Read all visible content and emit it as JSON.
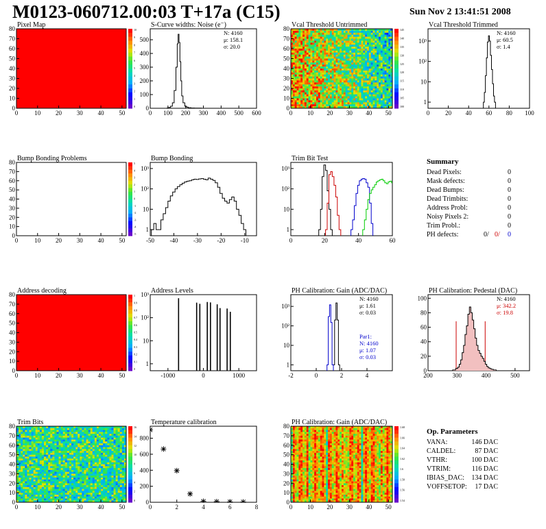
{
  "header": {
    "title": "M0123-060712.00:03 T+17a (C15)",
    "date": "Sun Nov  2 13:41:51 2008"
  },
  "colors": {
    "uniform_map": "#ff0000",
    "hist_black": "#000000",
    "hist_red": "#cc0000",
    "hist_blue": "#0000cc",
    "hist_green": "#00cc00"
  },
  "chart_data": [
    {
      "id": "pixel_map",
      "type": "heatmap",
      "title": "Pixel Map",
      "xlim": [
        0,
        52
      ],
      "ylim": [
        0,
        80
      ],
      "xticks": [
        "0",
        "10",
        "20",
        "30",
        "40",
        "50"
      ],
      "yticks": [
        "0",
        "10",
        "20",
        "30",
        "40",
        "50",
        "60",
        "70",
        "80"
      ],
      "fill": "uniform",
      "value": 10,
      "zticks": [
        "10",
        "9",
        "8",
        "7",
        "6",
        "5",
        "4",
        "3",
        "2",
        "1",
        "0"
      ]
    },
    {
      "id": "scurve_widths",
      "type": "histogram",
      "title": "S-Curve widths: Noise (e⁻)",
      "xlim": [
        0,
        600
      ],
      "ylim": [
        0,
        580
      ],
      "log_y": false,
      "xticks": [
        "0",
        "100",
        "200",
        "300",
        "400",
        "500",
        "600"
      ],
      "yticks": [
        "0",
        "100",
        "200",
        "300",
        "400",
        "500"
      ],
      "stats": [
        "N: 4160",
        "μ: 158.1",
        "σ: 20.0"
      ],
      "series": [
        {
          "color": "black",
          "x": [
            90,
            100,
            110,
            120,
            130,
            140,
            150,
            155,
            160,
            165,
            170,
            175,
            180,
            190,
            200,
            210,
            220,
            240,
            260,
            280,
            300
          ],
          "y": [
            0,
            2,
            6,
            15,
            40,
            130,
            300,
            470,
            540,
            480,
            340,
            200,
            90,
            40,
            15,
            8,
            4,
            2,
            1,
            1,
            0
          ]
        }
      ]
    },
    {
      "id": "vcal_untrimmed",
      "type": "heatmap",
      "title": "Vcal Threshold Untrimmed",
      "xlim": [
        0,
        52
      ],
      "ylim": [
        0,
        80
      ],
      "xticks": [
        "0",
        "10",
        "20",
        "30",
        "40",
        "50"
      ],
      "yticks": [
        "0",
        "10",
        "20",
        "30",
        "40",
        "50",
        "60",
        "70",
        "80"
      ],
      "fill": "gradient_untrimmed",
      "zticks": [
        "145",
        "140",
        "135",
        "130",
        "125",
        "120",
        "115",
        "110",
        "105",
        "100"
      ]
    },
    {
      "id": "vcal_trimmed",
      "type": "histogram",
      "title": "Vcal Threshold Trimmed",
      "xlim": [
        0,
        100
      ],
      "ylim": [
        0.5,
        4000
      ],
      "log_y": true,
      "xticks": [
        "0",
        "20",
        "40",
        "60",
        "80",
        "100"
      ],
      "yticks": [
        "1",
        "10",
        "10²",
        "10³"
      ],
      "stats": [
        "N: 4160",
        "μ: 60.5",
        "σ:  1.4"
      ],
      "series": [
        {
          "color": "black",
          "x": [
            55,
            56,
            57,
            58,
            59,
            60,
            61,
            62,
            63,
            64,
            65,
            66
          ],
          "y": [
            1,
            3,
            20,
            150,
            900,
            1800,
            1000,
            200,
            40,
            8,
            2,
            1
          ]
        }
      ]
    },
    {
      "id": "bump_problems",
      "type": "heatmap",
      "title": "Bump Bonding Problems",
      "xlim": [
        0,
        52
      ],
      "ylim": [
        0,
        80
      ],
      "xticks": [
        "0",
        "10",
        "20",
        "30",
        "40",
        "50"
      ],
      "yticks": [
        "0",
        "10",
        "20",
        "30",
        "40",
        "50",
        "60",
        "70",
        "80"
      ],
      "fill": "empty",
      "zticks": [
        "5",
        "4",
        "3",
        "2",
        "1",
        "0",
        "-1",
        "-2",
        "-3",
        "-4",
        "-5"
      ]
    },
    {
      "id": "bump_bonding",
      "type": "histogram",
      "title": "Bump Bonding",
      "xlim": [
        -50,
        -5
      ],
      "ylim": [
        0.5,
        2000
      ],
      "log_y": true,
      "xticks": [
        "-50",
        "-40",
        "-30",
        "-20",
        "-10"
      ],
      "yticks": [
        "1",
        "10",
        "10²",
        "10³"
      ],
      "series": [
        {
          "color": "black",
          "x": [
            -49,
            -48,
            -47,
            -46,
            -45,
            -44,
            -43,
            -42,
            -41,
            -40,
            -39,
            -38,
            -37,
            -36,
            -35,
            -34,
            -33,
            -32,
            -31,
            -30,
            -29,
            -28,
            -27,
            -26,
            -25,
            -24,
            -23,
            -22,
            -21,
            -20,
            -19,
            -18,
            -17,
            -16,
            -15,
            -14,
            -13,
            -12,
            -11,
            -10
          ],
          "y": [
            1,
            2,
            1,
            1,
            3,
            6,
            12,
            25,
            45,
            70,
            100,
            130,
            160,
            190,
            220,
            240,
            250,
            280,
            300,
            290,
            310,
            320,
            300,
            280,
            340,
            300,
            260,
            200,
            120,
            60,
            35,
            25,
            20,
            30,
            40,
            25,
            10,
            5,
            2,
            1
          ]
        }
      ]
    },
    {
      "id": "trim_bit_test",
      "type": "histogram",
      "title": "Trim Bit Test",
      "xlim": [
        0,
        60
      ],
      "ylim": [
        0.5,
        2000
      ],
      "log_y": true,
      "xticks": [
        "0",
        "20",
        "40",
        "60"
      ],
      "yticks": [
        "1",
        "10",
        "10²",
        "10³"
      ],
      "series": [
        {
          "color": "black",
          "x": [
            17,
            18,
            19,
            20,
            21,
            22,
            23,
            24
          ],
          "y": [
            1,
            10,
            400,
            1500,
            800,
            80,
            10,
            1
          ]
        },
        {
          "color": "red",
          "x": [
            21,
            22,
            23,
            24,
            25,
            26,
            27,
            28,
            29
          ],
          "y": [
            1,
            20,
            500,
            700,
            400,
            150,
            40,
            5,
            1
          ]
        },
        {
          "color": "blue",
          "x": [
            36,
            37,
            38,
            39,
            40,
            41,
            42,
            43,
            44,
            45,
            46,
            47,
            48
          ],
          "y": [
            1,
            3,
            15,
            60,
            150,
            250,
            300,
            320,
            300,
            200,
            120,
            20,
            2
          ]
        },
        {
          "color": "green",
          "x": [
            43,
            44,
            45,
            46,
            47,
            48,
            49,
            50,
            51,
            52,
            53,
            54,
            55,
            56,
            57,
            58,
            59,
            60
          ],
          "y": [
            1,
            3,
            10,
            30,
            60,
            90,
            120,
            160,
            220,
            250,
            280,
            300,
            250,
            200,
            180,
            220,
            240,
            200
          ]
        }
      ]
    },
    {
      "id": "address_decoding",
      "type": "heatmap",
      "title": "Address decoding",
      "xlim": [
        0,
        52
      ],
      "ylim": [
        0,
        80
      ],
      "xticks": [
        "0",
        "10",
        "20",
        "30",
        "40",
        "50"
      ],
      "yticks": [
        "0",
        "10",
        "20",
        "30",
        "40",
        "50",
        "60",
        "70",
        "80"
      ],
      "fill": "uniform",
      "value": 1,
      "zticks": [
        "1",
        "0.9",
        "0.8",
        "0.7",
        "0.6",
        "0.5",
        "0.4",
        "0.3",
        "0.2",
        "0.1",
        "0"
      ]
    },
    {
      "id": "address_levels",
      "type": "histogram",
      "title": "Address Levels",
      "xlim": [
        -1500,
        1500
      ],
      "ylim": [
        0.5,
        1000
      ],
      "log_y": true,
      "xticks": [
        "-1000",
        "0",
        "1000"
      ],
      "yticks": [
        "1",
        "10",
        "10²",
        "10³"
      ],
      "series": [
        {
          "color": "black",
          "style": "spikes",
          "x": [
            -700,
            -190,
            -100,
            110,
            200,
            390,
            470,
            670,
            760
          ],
          "y": [
            700,
            450,
            400,
            480,
            460,
            380,
            260,
            250,
            180
          ]
        }
      ]
    },
    {
      "id": "ph_gain",
      "type": "histogram",
      "title": "PH Calibration: Gain (ADC/DAC)",
      "xlim": [
        -2,
        6
      ],
      "ylim": [
        0.5,
        4000
      ],
      "log_y": true,
      "xticks": [
        "-2",
        "0",
        "2",
        "4"
      ],
      "yticks": [
        "1",
        "10",
        "10²",
        "10³"
      ],
      "stats": [
        "N: 4160",
        "μ: 1.61",
        "σ: 0.03"
      ],
      "stats2": [
        "Par1:",
        "N: 4160",
        "μ: 1.07",
        "σ: 0.03"
      ],
      "series": [
        {
          "color": "black",
          "x": [
            1.4,
            1.5,
            1.6,
            1.7,
            1.8
          ],
          "y": [
            1,
            200,
            1500,
            200,
            1
          ]
        },
        {
          "color": "blue",
          "x": [
            0.9,
            1.0,
            1.1,
            1.2,
            1.3
          ],
          "y": [
            1,
            300,
            1200,
            150,
            1
          ]
        }
      ]
    },
    {
      "id": "ph_pedestal",
      "type": "histogram",
      "title": "PH Calibration: Pedestal (DAC)",
      "xlim": [
        200,
        550
      ],
      "ylim": [
        0,
        105
      ],
      "log_y": false,
      "xticks": [
        "200",
        "300",
        "400",
        "500"
      ],
      "yticks": [
        "0",
        "20",
        "40",
        "60",
        "80",
        "100"
      ],
      "stats": [
        "N: 4160",
        "μ: 342.2",
        "σ: 19.8"
      ],
      "cut_lines": [
        297,
        397
      ],
      "series": [
        {
          "color": "black",
          "x": [
            280,
            290,
            300,
            305,
            310,
            315,
            320,
            325,
            330,
            335,
            340,
            345,
            350,
            355,
            360,
            365,
            370,
            375,
            380,
            385,
            390,
            395,
            400,
            405,
            410,
            415,
            420,
            430,
            440
          ],
          "y": [
            0,
            1,
            3,
            5,
            9,
            15,
            25,
            35,
            50,
            62,
            78,
            88,
            80,
            70,
            58,
            45,
            35,
            28,
            24,
            20,
            17,
            13,
            9,
            6,
            4,
            3,
            2,
            1,
            0
          ]
        }
      ]
    },
    {
      "id": "trim_bits",
      "type": "heatmap",
      "title": "Trim Bits",
      "xlim": [
        0,
        52
      ],
      "ylim": [
        0,
        80
      ],
      "xticks": [
        "0",
        "10",
        "20",
        "30",
        "40",
        "50"
      ],
      "yticks": [
        "0",
        "10",
        "20",
        "30",
        "40",
        "50",
        "60",
        "70",
        "80"
      ],
      "fill": "gradient_trim",
      "zticks": [
        "16",
        "14",
        "12",
        "10",
        "8",
        "6",
        "4",
        "2",
        "0"
      ]
    },
    {
      "id": "temperature_calibration",
      "type": "scatter",
      "title": "Temperature calibration",
      "xlim": [
        0,
        8
      ],
      "ylim": [
        0,
        950
      ],
      "log_y": false,
      "xticks": [
        "0",
        "2",
        "4",
        "6",
        "8"
      ],
      "yticks": [
        "0",
        "200",
        "400",
        "600",
        "800"
      ],
      "series": [
        {
          "color": "black",
          "marker": "star",
          "x": [
            0,
            1,
            2,
            3,
            4,
            5,
            6,
            7
          ],
          "y": [
            905,
            665,
            395,
            105,
            12,
            8,
            5,
            4
          ]
        }
      ]
    },
    {
      "id": "ph_gain_map",
      "type": "heatmap",
      "title": "PH Calibration: Gain (ADC/DAC)",
      "xlim": [
        0,
        52
      ],
      "ylim": [
        0,
        80
      ],
      "xticks": [
        "0",
        "10",
        "20",
        "30",
        "40",
        "50"
      ],
      "yticks": [
        "0",
        "10",
        "20",
        "30",
        "40",
        "50",
        "60",
        "70",
        "80"
      ],
      "fill": "gradient_gain",
      "zticks": [
        "1.68",
        "1.66",
        "1.64",
        "1.62",
        "1.6",
        "1.58",
        "1.56",
        "1.54"
      ]
    }
  ],
  "summary": {
    "title": "Summary",
    "rows": [
      {
        "label": "Dead Pixels:",
        "value": "0"
      },
      {
        "label": "Mask defects:",
        "value": "0"
      },
      {
        "label": "Dead Bumps:",
        "value": "0"
      },
      {
        "label": "Dead Trimbits:",
        "value": "0"
      },
      {
        "label": "Address Probl:",
        "value": "0"
      },
      {
        "label": "Noisy Pixels 2:",
        "value": "0"
      },
      {
        "label": "Trim Probl.:",
        "value": "0"
      }
    ],
    "ph_defects": {
      "label": "PH defects:",
      "v1": "0/",
      "v2": "0/",
      "v3": "0"
    }
  },
  "parameters": {
    "title": "Op. Parameters",
    "rows": [
      {
        "label": "VANA:",
        "value": "146 DAC"
      },
      {
        "label": "CALDEL:",
        "value": "87 DAC"
      },
      {
        "label": "VTHR:",
        "value": "100 DAC"
      },
      {
        "label": "VTRIM:",
        "value": "116 DAC"
      },
      {
        "label": "IBIAS_DAC:",
        "value": "134 DAC"
      },
      {
        "label": "VOFFSETOP:",
        "value": "17 DAC"
      }
    ]
  }
}
